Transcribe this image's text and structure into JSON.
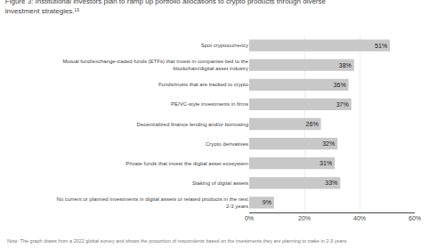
{
  "chart_data": {
    "type": "bar",
    "orientation": "horizontal",
    "title": "Figure 3: Institutional investors plan to ramp up portfolio allocations to crypto products through diverse\ninvestment strategies.¹⁵",
    "categories": [
      "Spot cryptocurrency",
      "Mutual fund/exchange-traded funds (ETFs) that invest in companies tied to the\nblockchain/digital asset industry",
      "Funds/trusts that are tracked to crypto",
      "PE/VC-style investments in firms",
      "Decentralized finance lending and/or borrowing",
      "Crypto derivatives",
      "Private funds that invest the digital asset ecosystem",
      "Staking of digital assets",
      "No current or planned investments in digital assets or related products in the next\n2-3 years"
    ],
    "values": [
      51,
      38,
      36,
      37,
      26,
      32,
      31,
      33,
      9
    ],
    "value_labels": [
      "51%",
      "38%",
      "36%",
      "37%",
      "26%",
      "32%",
      "31%",
      "33%",
      "9%"
    ],
    "data_labels": true,
    "color": "#c8c8c8",
    "xlim": [
      0,
      60
    ],
    "xticks": [
      {
        "value": 0,
        "label": "0%"
      },
      {
        "value": 20,
        "label": "20%"
      },
      {
        "value": 40,
        "label": "40%"
      },
      {
        "value": 60,
        "label": "60%"
      }
    ],
    "grid": true,
    "annotations": [
      "Note: The graph draws from a 2022 global survey and shows the proportion of respondents based on the investments they are planning to make in 2-3 years."
    ]
  }
}
